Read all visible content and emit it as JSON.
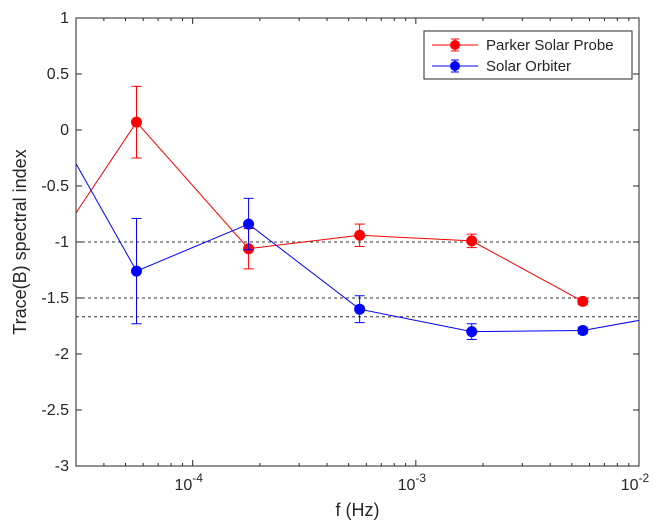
{
  "chart_data": {
    "type": "line",
    "xlabel": "f (Hz)",
    "ylabel": "Trace(B) spectral index",
    "xscale": "log",
    "xlim": [
      3e-05,
      0.01
    ],
    "ylim": [
      -3,
      1
    ],
    "grid": false,
    "legend_position": "top-right",
    "x_ticks": [
      {
        "value": 0.0001,
        "base": "10",
        "exp": "-4"
      },
      {
        "value": 0.001,
        "base": "10",
        "exp": "-3"
      },
      {
        "value": 0.01,
        "base": "10",
        "exp": "-2"
      }
    ],
    "y_ticks": [
      {
        "value": 1,
        "label": "1"
      },
      {
        "value": 0.5,
        "label": "0.5"
      },
      {
        "value": 0,
        "label": "0"
      },
      {
        "value": -0.5,
        "label": "-0.5"
      },
      {
        "value": -1,
        "label": "-1"
      },
      {
        "value": -1.5,
        "label": "-1.5"
      },
      {
        "value": -2,
        "label": "-2"
      },
      {
        "value": -2.5,
        "label": "-2.5"
      },
      {
        "value": -3,
        "label": "-3"
      }
    ],
    "reference_lines": [
      -1,
      -1.5,
      -1.667
    ],
    "series": [
      {
        "name": "Parker Solar Probe",
        "color": "#ff0000",
        "line_x": [
          3e-05,
          5.6e-05,
          0.000178,
          0.00056,
          0.00178,
          0.0056
        ],
        "line_y": [
          -0.74,
          0.07,
          -1.06,
          -0.94,
          -0.99,
          -1.53
        ],
        "points": [
          {
            "x": 5.6e-05,
            "y": 0.07,
            "err": 0.32
          },
          {
            "x": 0.000178,
            "y": -1.06,
            "err": 0.18
          },
          {
            "x": 0.00056,
            "y": -0.94,
            "err": 0.1
          },
          {
            "x": 0.00178,
            "y": -0.99,
            "err": 0.06
          },
          {
            "x": 0.0056,
            "y": -1.53,
            "err": 0.03
          }
        ]
      },
      {
        "name": "Solar Orbiter",
        "color": "#0000ff",
        "line_x": [
          3e-05,
          5.6e-05,
          0.000178,
          0.00056,
          0.00178,
          0.0056,
          0.01
        ],
        "line_y": [
          -0.3,
          -1.26,
          -0.84,
          -1.6,
          -1.8,
          -1.79,
          -1.7
        ],
        "points": [
          {
            "x": 5.6e-05,
            "y": -1.26,
            "err": 0.47
          },
          {
            "x": 0.000178,
            "y": -0.84,
            "err": 0.23
          },
          {
            "x": 0.00056,
            "y": -1.6,
            "err": 0.12
          },
          {
            "x": 0.00178,
            "y": -1.8,
            "err": 0.07
          },
          {
            "x": 0.0056,
            "y": -1.79,
            "err": 0.03
          }
        ]
      }
    ]
  }
}
